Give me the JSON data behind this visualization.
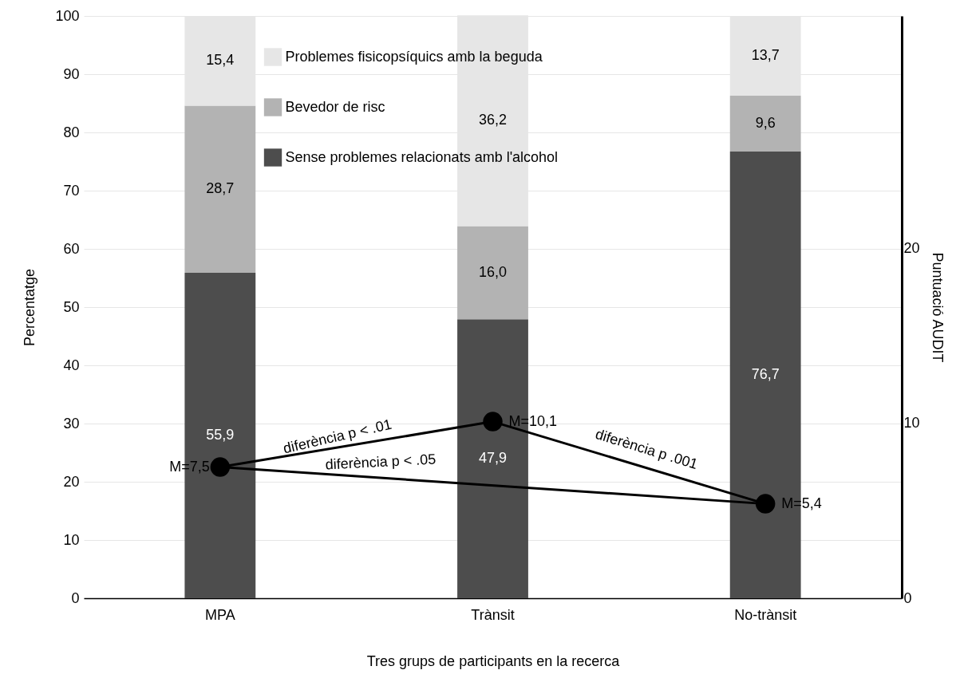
{
  "chart_data": {
    "type": "bar",
    "stacked": true,
    "xlabel": "Tres grups de participants en la recerca",
    "ylabel": "Percentatge",
    "y2label": "Puntuació AUDIT",
    "categories": [
      "MPA",
      "Trànsit",
      "No-trànsit"
    ],
    "series": [
      {
        "name": "Sense problemes relacionats amb l'alcohol",
        "color": "#4d4d4d",
        "values": [
          55.9,
          47.9,
          76.7
        ],
        "value_labels": [
          "55,9",
          "47,9",
          "76,7"
        ]
      },
      {
        "name": "Bevedor de risc",
        "color": "#b3b3b3",
        "values": [
          28.7,
          16.0,
          9.6
        ],
        "value_labels": [
          "28,7",
          "16,0",
          "9,6"
        ]
      },
      {
        "name": "Problemes fisicopsíquics amb la beguda",
        "color": "#e6e6e6",
        "values": [
          15.4,
          36.2,
          13.7
        ],
        "value_labels": [
          "15,4",
          "36,2",
          "13,7"
        ]
      },
      {
        "type": "line",
        "axis": "y2",
        "color": "#000000",
        "marker": "circle",
        "x": [
          "MPA",
          "Trànsit",
          "No-trànsit"
        ],
        "values": [
          7.5,
          10.1,
          5.4
        ],
        "value_labels": [
          "M=7,5",
          "M=10,1",
          "M=5,4"
        ]
      },
      {
        "type": "line",
        "axis": "y2",
        "color": "#000000",
        "marker": "none",
        "x": [
          "MPA",
          "No-trànsit"
        ],
        "values": [
          7.5,
          5.4
        ]
      }
    ],
    "ylim": [
      0,
      100
    ],
    "yticks": [
      0,
      10,
      20,
      30,
      40,
      50,
      60,
      70,
      80,
      90,
      100
    ],
    "y2lim": [
      0,
      33.3
    ],
    "y2ticks": [
      0,
      10,
      20
    ],
    "grid": "y",
    "legend": "top",
    "annotations": [
      "diferència p < .01",
      "diferència p < .05",
      "diferència p .001"
    ]
  }
}
